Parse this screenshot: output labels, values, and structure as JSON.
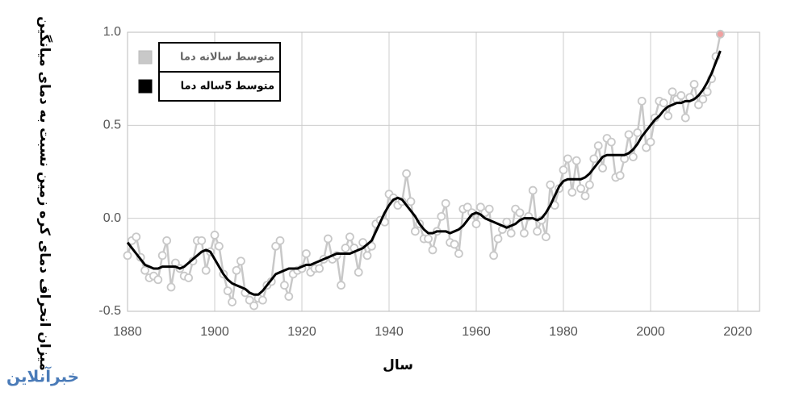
{
  "chart_data": {
    "type": "line",
    "y_label": "میزان انحراف دمای کره زمین نسبت به دمای میانگین",
    "x_label": "سال",
    "watermark": "خبرآنلاین",
    "x": [
      1880,
      1881,
      1882,
      1883,
      1884,
      1885,
      1886,
      1887,
      1888,
      1889,
      1890,
      1891,
      1892,
      1893,
      1894,
      1895,
      1896,
      1897,
      1898,
      1899,
      1900,
      1901,
      1902,
      1903,
      1904,
      1905,
      1906,
      1907,
      1908,
      1909,
      1910,
      1911,
      1912,
      1913,
      1914,
      1915,
      1916,
      1917,
      1918,
      1919,
      1920,
      1921,
      1922,
      1923,
      1924,
      1925,
      1926,
      1927,
      1928,
      1929,
      1930,
      1931,
      1932,
      1933,
      1934,
      1935,
      1936,
      1937,
      1938,
      1939,
      1940,
      1941,
      1942,
      1943,
      1944,
      1945,
      1946,
      1947,
      1948,
      1949,
      1950,
      1951,
      1952,
      1953,
      1954,
      1955,
      1956,
      1957,
      1958,
      1959,
      1960,
      1961,
      1962,
      1963,
      1964,
      1965,
      1966,
      1967,
      1968,
      1969,
      1970,
      1971,
      1972,
      1973,
      1974,
      1975,
      1976,
      1977,
      1978,
      1979,
      1980,
      1981,
      1982,
      1983,
      1984,
      1985,
      1986,
      1987,
      1988,
      1989,
      1990,
      1991,
      1992,
      1993,
      1994,
      1995,
      1996,
      1997,
      1998,
      1999,
      2000,
      2001,
      2002,
      2003,
      2004,
      2005,
      2006,
      2007,
      2008,
      2009,
      2010,
      2011,
      2012,
      2013,
      2014,
      2015,
      2016
    ],
    "series": [
      {
        "name": "متوسط سالانه دما",
        "color": "#c8c8c8",
        "markers": true,
        "last_marker_color": "#f0a0a0",
        "values": [
          -0.2,
          -0.12,
          -0.1,
          -0.21,
          -0.28,
          -0.32,
          -0.31,
          -0.33,
          -0.2,
          -0.12,
          -0.37,
          -0.24,
          -0.27,
          -0.31,
          -0.32,
          -0.23,
          -0.12,
          -0.12,
          -0.28,
          -0.18,
          -0.09,
          -0.15,
          -0.3,
          -0.39,
          -0.45,
          -0.28,
          -0.23,
          -0.4,
          -0.44,
          -0.47,
          -0.43,
          -0.44,
          -0.36,
          -0.34,
          -0.15,
          -0.12,
          -0.36,
          -0.42,
          -0.3,
          -0.28,
          -0.27,
          -0.19,
          -0.29,
          -0.27,
          -0.27,
          -0.22,
          -0.11,
          -0.22,
          -0.2,
          -0.36,
          -0.16,
          -0.1,
          -0.16,
          -0.29,
          -0.13,
          -0.2,
          -0.15,
          -0.03,
          -0.01,
          -0.02,
          0.13,
          0.11,
          0.07,
          0.09,
          0.24,
          0.09,
          -0.07,
          -0.03,
          -0.11,
          -0.11,
          -0.17,
          -0.07,
          0.01,
          0.08,
          -0.13,
          -0.14,
          -0.19,
          0.05,
          0.06,
          0.03,
          -0.03,
          0.06,
          0.03,
          0.05,
          -0.2,
          -0.11,
          -0.06,
          -0.02,
          -0.08,
          0.05,
          0.03,
          -0.08,
          0.01,
          0.15,
          -0.07,
          -0.01,
          -0.1,
          0.18,
          0.07,
          0.16,
          0.26,
          0.32,
          0.14,
          0.31,
          0.16,
          0.12,
          0.18,
          0.32,
          0.39,
          0.27,
          0.43,
          0.41,
          0.22,
          0.23,
          0.32,
          0.45,
          0.33,
          0.46,
          0.63,
          0.38,
          0.41,
          0.54,
          0.63,
          0.62,
          0.55,
          0.68,
          0.64,
          0.66,
          0.54,
          0.65,
          0.72,
          0.61,
          0.64,
          0.68,
          0.75,
          0.87,
          0.99
        ]
      },
      {
        "name": "متوسط 5ساله دما",
        "color": "#000000",
        "markers": false,
        "values": [
          -0.13,
          -0.16,
          -0.19,
          -0.22,
          -0.25,
          -0.26,
          -0.27,
          -0.27,
          -0.26,
          -0.26,
          -0.26,
          -0.26,
          -0.27,
          -0.26,
          -0.24,
          -0.22,
          -0.2,
          -0.18,
          -0.17,
          -0.18,
          -0.22,
          -0.26,
          -0.3,
          -0.33,
          -0.35,
          -0.36,
          -0.37,
          -0.38,
          -0.4,
          -0.41,
          -0.41,
          -0.39,
          -0.36,
          -0.33,
          -0.3,
          -0.29,
          -0.28,
          -0.27,
          -0.27,
          -0.27,
          -0.26,
          -0.25,
          -0.25,
          -0.24,
          -0.23,
          -0.22,
          -0.21,
          -0.2,
          -0.19,
          -0.19,
          -0.19,
          -0.19,
          -0.18,
          -0.17,
          -0.16,
          -0.14,
          -0.12,
          -0.07,
          -0.02,
          0.03,
          0.07,
          0.1,
          0.11,
          0.1,
          0.07,
          0.04,
          0.01,
          -0.03,
          -0.06,
          -0.08,
          -0.08,
          -0.07,
          -0.07,
          -0.07,
          -0.08,
          -0.07,
          -0.06,
          -0.04,
          -0.01,
          0.02,
          0.03,
          0.02,
          0.0,
          -0.01,
          -0.02,
          -0.03,
          -0.04,
          -0.05,
          -0.04,
          -0.03,
          -0.01,
          0.0,
          0.0,
          0.0,
          -0.01,
          0.0,
          0.03,
          0.07,
          0.12,
          0.17,
          0.2,
          0.21,
          0.21,
          0.21,
          0.21,
          0.22,
          0.24,
          0.27,
          0.3,
          0.33,
          0.34,
          0.34,
          0.34,
          0.34,
          0.34,
          0.35,
          0.37,
          0.4,
          0.44,
          0.47,
          0.5,
          0.53,
          0.55,
          0.58,
          0.6,
          0.61,
          0.62,
          0.62,
          0.63,
          0.63,
          0.64,
          0.66,
          0.69,
          0.73,
          0.78,
          0.84,
          0.9
        ]
      }
    ],
    "xlim": [
      1880,
      2025
    ],
    "ylim": [
      -0.5,
      1.0
    ],
    "xticks": [
      1880,
      1900,
      1920,
      1940,
      1960,
      1980,
      2000,
      2020
    ],
    "yticks": [
      -0.5,
      {
        "value": 0,
        "label": "0.0"
      },
      0.5,
      {
        "value": 1,
        "label": "1.0"
      }
    ],
    "grid": true
  }
}
